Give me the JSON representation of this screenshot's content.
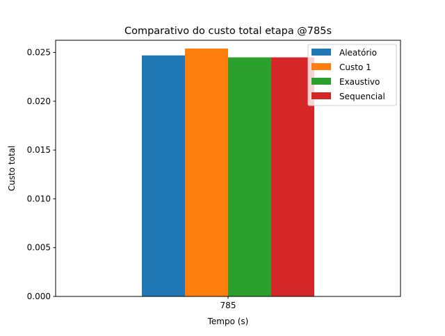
{
  "chart_data": {
    "type": "bar",
    "title": "Comparativo do custo total etapa @785s",
    "xlabel": "Tempo (s)",
    "ylabel": "Custo total",
    "categories": [
      "785"
    ],
    "ylim": [
      0,
      0.02625
    ],
    "yticks": [
      "0.000",
      "0.005",
      "0.010",
      "0.015",
      "0.020",
      "0.025"
    ],
    "grid": false,
    "legend_position": "top-right",
    "series": [
      {
        "name": "Aleatório",
        "values": [
          0.0247
        ],
        "color": "#1f77b4"
      },
      {
        "name": "Custo 1",
        "values": [
          0.0254
        ],
        "color": "#ff7f0e"
      },
      {
        "name": "Exaustivo",
        "values": [
          0.0245
        ],
        "color": "#2ca02c"
      },
      {
        "name": "Sequencial",
        "values": [
          0.0245
        ],
        "color": "#d62728"
      }
    ]
  }
}
